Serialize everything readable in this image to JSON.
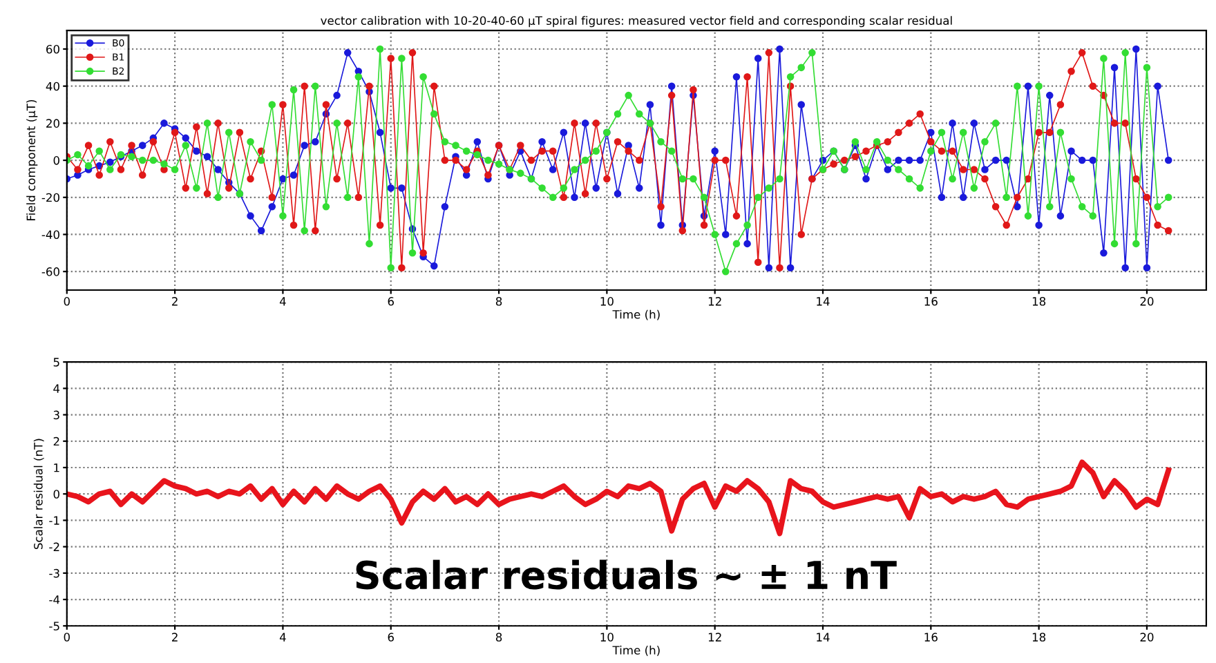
{
  "chart_data": [
    {
      "type": "line",
      "title": "vector calibration with 10-20-40-60 µT spiral figures: measured vector field and corresponding scalar residual",
      "xlabel": "Time (h)",
      "ylabel": "Field component (µT)",
      "x": [
        0,
        0.2,
        0.4,
        0.6,
        0.8,
        1.0,
        1.2,
        1.4,
        1.6,
        1.8,
        2.0,
        2.2,
        2.4,
        2.6,
        2.8,
        3.0,
        3.2,
        3.4,
        3.6,
        3.8,
        4.0,
        4.2,
        4.4,
        4.6,
        4.8,
        5.0,
        5.2,
        5.4,
        5.6,
        5.8,
        6.0,
        6.2,
        6.4,
        6.6,
        6.8,
        7.0,
        7.2,
        7.4,
        7.6,
        7.8,
        8.0,
        8.2,
        8.4,
        8.6,
        8.8,
        9.0,
        9.2,
        9.4,
        9.6,
        9.8,
        10.0,
        10.2,
        10.4,
        10.6,
        10.8,
        11.0,
        11.2,
        11.4,
        11.6,
        11.8,
        12.0,
        12.2,
        12.4,
        12.6,
        12.8,
        13.0,
        13.2,
        13.4,
        13.6,
        13.8,
        14.0,
        14.2,
        14.4,
        14.6,
        14.8,
        15.0,
        15.2,
        15.4,
        15.6,
        15.8,
        16.0,
        16.2,
        16.4,
        16.6,
        16.8,
        17.0,
        17.2,
        17.4,
        17.6,
        17.8,
        18.0,
        18.2,
        18.4,
        18.6,
        18.8,
        19.0,
        19.2,
        19.4,
        19.6,
        19.8,
        20.0,
        20.2,
        20.4
      ],
      "series": [
        {
          "name": "B0",
          "color": "#1a1adb",
          "values": [
            -10,
            -8,
            -5,
            -3,
            -1,
            2,
            5,
            8,
            12,
            20,
            17,
            12,
            5,
            2,
            -5,
            -12,
            -18,
            -30,
            -38,
            -25,
            -10,
            -8,
            8,
            10,
            25,
            35,
            58,
            48,
            37,
            15,
            -15,
            -15,
            -37,
            -52,
            -57,
            -25,
            2,
            -8,
            10,
            -10,
            8,
            -8,
            5,
            -10,
            10,
            -5,
            15,
            -20,
            20,
            -15,
            15,
            -18,
            8,
            -15,
            30,
            -35,
            40,
            -35,
            35,
            -30,
            5,
            -40,
            45,
            -45,
            55,
            -58,
            60,
            -58,
            30,
            -10,
            0,
            5,
            -5,
            8,
            -10,
            8,
            -5,
            0,
            0,
            0,
            15,
            -20,
            20,
            -20,
            20,
            -5,
            0,
            0,
            -25,
            40,
            -35,
            35,
            -30,
            5,
            0,
            0,
            -50,
            50,
            -58,
            60,
            -58,
            40,
            0
          ]
        },
        {
          "name": "B1",
          "color": "#e01818",
          "values": [
            2,
            -5,
            8,
            -8,
            10,
            -5,
            8,
            -8,
            10,
            -5,
            15,
            -15,
            18,
            -18,
            20,
            -15,
            15,
            -10,
            5,
            -20,
            30,
            -35,
            40,
            -38,
            30,
            -10,
            20,
            -20,
            40,
            -35,
            55,
            -58,
            58,
            -50,
            40,
            0,
            0,
            -5,
            5,
            -8,
            8,
            -5,
            8,
            0,
            5,
            5,
            -20,
            20,
            -18,
            20,
            -10,
            10,
            5,
            0,
            20,
            -25,
            35,
            -38,
            38,
            -35,
            0,
            0,
            -30,
            45,
            -55,
            58,
            -58,
            40,
            -40,
            -10,
            -5,
            -2,
            0,
            2,
            5,
            8,
            10,
            15,
            20,
            25,
            10,
            5,
            5,
            -5,
            -5,
            -10,
            -25,
            -35,
            -20,
            -10,
            15,
            15,
            30,
            48,
            58,
            40,
            35,
            20,
            20,
            -10,
            -20,
            -35,
            -38
          ]
        },
        {
          "name": "B2",
          "color": "#33dd33",
          "values": [
            0,
            3,
            -3,
            5,
            -5,
            3,
            2,
            0,
            0,
            -2,
            -5,
            8,
            -15,
            20,
            -20,
            15,
            -18,
            10,
            0,
            30,
            -30,
            38,
            -38,
            40,
            -25,
            20,
            -20,
            45,
            -45,
            60,
            -58,
            55,
            -50,
            45,
            25,
            10,
            8,
            5,
            3,
            0,
            -2,
            -5,
            -7,
            -10,
            -15,
            -20,
            -15,
            -5,
            0,
            5,
            15,
            25,
            35,
            25,
            20,
            10,
            5,
            -10,
            -10,
            -20,
            -40,
            -60,
            -45,
            -35,
            -20,
            -15,
            -10,
            45,
            50,
            58,
            -5,
            5,
            -5,
            10,
            -5,
            10,
            0,
            -5,
            -10,
            -15,
            5,
            15,
            -10,
            15,
            -15,
            10,
            20,
            -20,
            40,
            -30,
            40,
            -25,
            15,
            -10,
            -25,
            -30,
            55,
            -45,
            58,
            -45,
            50,
            -25,
            -20
          ]
        }
      ],
      "xlim": [
        0,
        21.1
      ],
      "xticks": [
        0,
        2,
        4,
        6,
        8,
        10,
        12,
        14,
        16,
        18,
        20
      ],
      "ylim": [
        -70,
        70
      ],
      "yticks": [
        -60,
        -40,
        -20,
        0,
        20,
        40,
        60
      ],
      "grid": true,
      "legend": "top left",
      "marker": "circle",
      "line_style": "solid"
    },
    {
      "type": "line",
      "xlabel": "Time (h)",
      "ylabel": "Scalar residual (nT)",
      "annotations": [
        "Scalar residuals ~ ± 1 nT"
      ],
      "x": [
        0,
        0.2,
        0.4,
        0.6,
        0.8,
        1.0,
        1.2,
        1.4,
        1.6,
        1.8,
        2.0,
        2.2,
        2.4,
        2.6,
        2.8,
        3.0,
        3.2,
        3.4,
        3.6,
        3.8,
        4.0,
        4.2,
        4.4,
        4.6,
        4.8,
        5.0,
        5.2,
        5.4,
        5.6,
        5.8,
        6.0,
        6.2,
        6.4,
        6.6,
        6.8,
        7.0,
        7.2,
        7.4,
        7.6,
        7.8,
        8.0,
        8.2,
        8.4,
        8.6,
        8.8,
        9.0,
        9.2,
        9.4,
        9.6,
        9.8,
        10.0,
        10.2,
        10.4,
        10.6,
        10.8,
        11.0,
        11.2,
        11.4,
        11.6,
        11.8,
        12.0,
        12.2,
        12.4,
        12.6,
        12.8,
        13.0,
        13.2,
        13.4,
        13.6,
        13.8,
        14.0,
        14.2,
        14.4,
        14.6,
        14.8,
        15.0,
        15.2,
        15.4,
        15.6,
        15.8,
        16.0,
        16.2,
        16.4,
        16.6,
        16.8,
        17.0,
        17.2,
        17.4,
        17.6,
        17.8,
        18.0,
        18.2,
        18.4,
        18.6,
        18.8,
        19.0,
        19.2,
        19.4,
        19.6,
        19.8,
        20.0,
        20.2,
        20.4
      ],
      "series": [
        {
          "color": "#e8141c",
          "values": [
            0,
            -0.1,
            -0.3,
            0,
            0.1,
            -0.4,
            0,
            -0.3,
            0.1,
            0.5,
            0.3,
            0.2,
            0,
            0.1,
            -0.1,
            0.1,
            0,
            0.3,
            -0.2,
            0.2,
            -0.4,
            0.1,
            -0.3,
            0.2,
            -0.2,
            0.3,
            0,
            -0.2,
            0.1,
            0.3,
            -0.2,
            -1.1,
            -0.3,
            0.1,
            -0.2,
            0.2,
            -0.3,
            -0.1,
            -0.4,
            0,
            -0.4,
            -0.2,
            -0.1,
            0,
            -0.1,
            0.1,
            0.3,
            -0.1,
            -0.4,
            -0.2,
            0.1,
            -0.1,
            0.3,
            0.2,
            0.4,
            0.1,
            -1.4,
            -0.2,
            0.2,
            0.4,
            -0.5,
            0.3,
            0.1,
            0.5,
            0.2,
            -0.3,
            -1.5,
            0.5,
            0.2,
            0.1,
            -0.3,
            -0.5,
            -0.4,
            -0.3,
            -0.2,
            -0.1,
            -0.2,
            -0.1,
            -0.9,
            0.2,
            -0.1,
            0,
            -0.3,
            -0.1,
            -0.2,
            -0.1,
            0.1,
            -0.4,
            -0.5,
            -0.2,
            -0.1,
            0,
            0.1,
            0.3,
            1.2,
            0.8,
            -0.1,
            0.5,
            0.1,
            -0.5,
            -0.2,
            -0.4,
            0.9
          ]
        }
      ],
      "xlim": [
        0,
        21.1
      ],
      "xticks": [
        0,
        2,
        4,
        6,
        8,
        10,
        12,
        14,
        16,
        18,
        20
      ],
      "ylim": [
        -5,
        5
      ],
      "yticks": [
        -5,
        -4,
        -3,
        -2,
        -1,
        0,
        1,
        2,
        3,
        4,
        5
      ],
      "grid": true,
      "line_style": "solid"
    }
  ]
}
